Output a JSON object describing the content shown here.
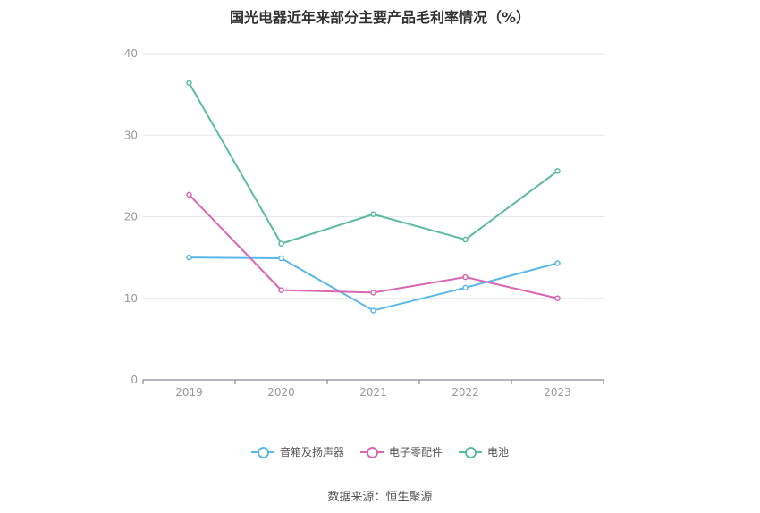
{
  "chart_data": {
    "type": "line",
    "title": "国光电器近年来部分主要产品毛利率情况（%）",
    "categories": [
      "2019",
      "2020",
      "2021",
      "2022",
      "2023"
    ],
    "series": [
      {
        "name": "音箱及扬声器",
        "color": "#5ab8e8",
        "values": [
          15.0,
          14.9,
          8.5,
          11.3,
          14.3
        ]
      },
      {
        "name": "电子零配件",
        "color": "#d966b0",
        "values": [
          22.7,
          11.0,
          10.7,
          12.6,
          10.0
        ]
      },
      {
        "name": "电池",
        "color": "#5bbba0",
        "values": [
          36.4,
          16.7,
          20.3,
          17.2,
          25.6
        ]
      }
    ],
    "ylim": [
      0,
      40
    ],
    "yticks": [
      0,
      10,
      20,
      30,
      40
    ],
    "grid": true,
    "legend_position": "bottom"
  },
  "source": "数据来源：恒生聚源"
}
